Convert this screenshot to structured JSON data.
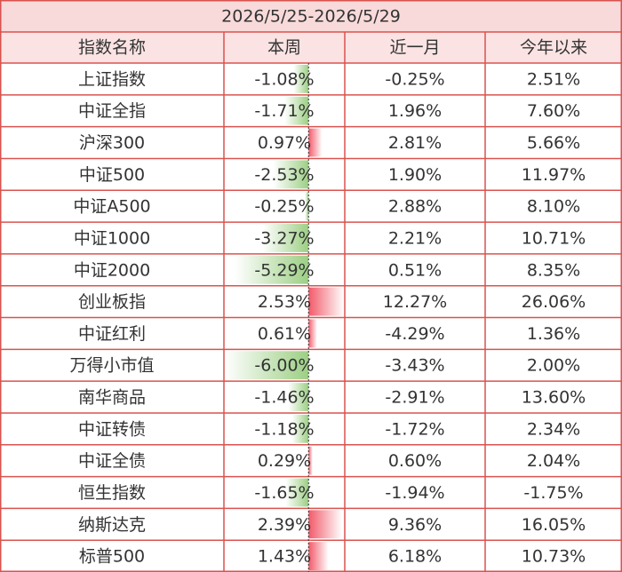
{
  "table": {
    "title": "2026/5/25-2026/5/29",
    "header": [
      "指数名称",
      "本周",
      "近一月",
      "今年以来"
    ],
    "rows": [
      [
        "上证指数",
        "-1.08%",
        "-0.25%",
        "2.51%"
      ],
      [
        "中证全指",
        "-1.71%",
        "1.96%",
        "7.60%"
      ],
      [
        "沪深300",
        "0.97%",
        "2.81%",
        "5.66%"
      ],
      [
        "中证500",
        "-2.53%",
        "1.90%",
        "11.97%"
      ],
      [
        "中证A500",
        "-0.25%",
        "2.88%",
        "8.10%"
      ],
      [
        "中证1000",
        "-3.27%",
        "2.21%",
        "10.71%"
      ],
      [
        "中证2000",
        "-5.29%",
        "0.51%",
        "8.35%"
      ],
      [
        "创业板指",
        "2.53%",
        "12.27%",
        "26.06%"
      ],
      [
        "中证红利",
        "0.61%",
        "-4.29%",
        "1.36%"
      ],
      [
        "万得小市值",
        "-6.00%",
        "-3.43%",
        "2.00%"
      ],
      [
        "南华商品",
        "-1.46%",
        "-2.91%",
        "13.60%"
      ],
      [
        "中证转债",
        "-1.18%",
        "-1.72%",
        "2.34%"
      ],
      [
        "中证全债",
        "0.29%",
        "0.60%",
        "2.04%"
      ],
      [
        "恒生指数",
        "-1.65%",
        "-1.94%",
        "-1.75%"
      ],
      [
        "纳斯达克",
        "2.39%",
        "9.36%",
        "16.05%"
      ],
      [
        "标普500",
        "1.43%",
        "6.18%",
        "10.73%"
      ]
    ]
  }
}
